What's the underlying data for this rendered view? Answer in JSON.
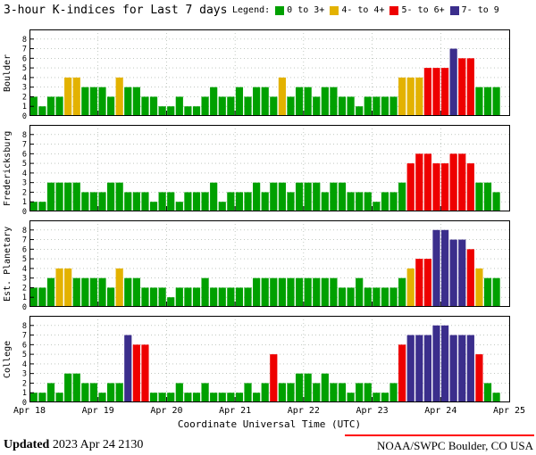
{
  "header": {
    "title": "3-hour K-indices for Last 7 days",
    "legend_label": "Legend:"
  },
  "colors": {
    "green": "#00A000",
    "yellow": "#E3B200",
    "red": "#EE0000",
    "purple": "#3B2E8C",
    "grid": "#9CA89C",
    "axis": "#000000",
    "footer_rule": "#FF0000"
  },
  "legend": {
    "items": [
      {
        "label": "0 to 3+",
        "color": "green"
      },
      {
        "label": "4- to 4+",
        "color": "yellow"
      },
      {
        "label": "5- to 6+",
        "color": "red"
      },
      {
        "label": "7- to 9",
        "color": "purple"
      }
    ]
  },
  "chart_data": {
    "type": "bar",
    "title": "3-hour K-indices for Last 7 days",
    "x_axis": {
      "title": "Coordinate Universal Time (UTC)",
      "tick_labels": [
        "Apr 18",
        "Apr 19",
        "Apr 20",
        "Apr 21",
        "Apr 22",
        "Apr 23",
        "Apr 24",
        "Apr 25"
      ],
      "hours_per_bar": 3,
      "bars_per_day": 8
    },
    "y_axis": {
      "min": 0,
      "max": 9,
      "ticks": [
        0,
        1,
        2,
        3,
        4,
        5,
        6,
        7,
        8
      ]
    },
    "color_rule": {
      "green": "K 0 to 3+",
      "yellow": "K 4- to 4+",
      "red": "K 5- to 6+",
      "purple": "K 7- to 9"
    },
    "panels": [
      {
        "station": "Boulder",
        "values": [
          2,
          1,
          2,
          2,
          4,
          4,
          3,
          3,
          3,
          2,
          4,
          3,
          3,
          2,
          2,
          1,
          1,
          2,
          1,
          1,
          2,
          3,
          2,
          2,
          3,
          2,
          3,
          3,
          2,
          4,
          2,
          3,
          3,
          2,
          3,
          3,
          2,
          2,
          1,
          2,
          2,
          2,
          2,
          4,
          4,
          4,
          5,
          5,
          5,
          7,
          6,
          6,
          3,
          3,
          3
        ]
      },
      {
        "station": "Fredericksburg",
        "values": [
          1,
          1,
          3,
          3,
          3,
          3,
          2,
          2,
          2,
          3,
          3,
          2,
          2,
          2,
          1,
          2,
          2,
          1,
          2,
          2,
          2,
          3,
          1,
          2,
          2,
          2,
          3,
          2,
          3,
          3,
          2,
          3,
          3,
          3,
          2,
          3,
          3,
          2,
          2,
          2,
          1,
          2,
          2,
          3,
          5,
          6,
          6,
          5,
          5,
          6,
          6,
          5,
          3,
          3,
          2
        ]
      },
      {
        "station": "Est. Planetary",
        "values": [
          2,
          2,
          3,
          4,
          4,
          3,
          3,
          3,
          3,
          2,
          4,
          3,
          3,
          2,
          2,
          2,
          1,
          2,
          2,
          2,
          3,
          2,
          2,
          2,
          2,
          2,
          3,
          3,
          3,
          3,
          3,
          3,
          3,
          3,
          3,
          3,
          2,
          2,
          3,
          2,
          2,
          2,
          2,
          3,
          4,
          5,
          5,
          8,
          8,
          7,
          7,
          6,
          4,
          3,
          3
        ]
      },
      {
        "station": "College",
        "values": [
          1,
          1,
          2,
          1,
          3,
          3,
          2,
          2,
          1,
          2,
          2,
          7,
          6,
          6,
          1,
          1,
          1,
          2,
          1,
          1,
          2,
          1,
          1,
          1,
          1,
          2,
          1,
          2,
          5,
          2,
          2,
          3,
          3,
          2,
          3,
          2,
          2,
          1,
          2,
          2,
          1,
          1,
          2,
          6,
          7,
          7,
          7,
          8,
          8,
          7,
          7,
          7,
          5,
          2,
          1
        ]
      }
    ]
  },
  "footer": {
    "updated_label": "Updated",
    "updated_value": "2023 Apr 24 2130",
    "credit": "NOAA/SWPC Boulder, CO USA"
  }
}
